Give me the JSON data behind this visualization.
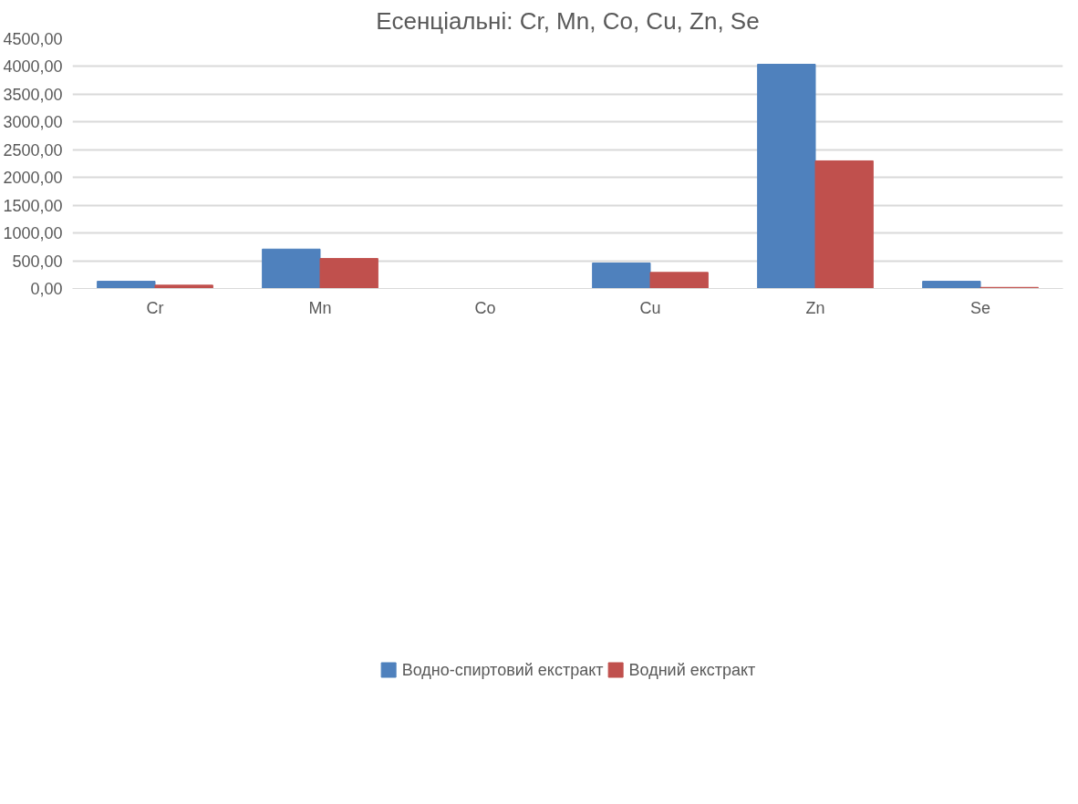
{
  "chart_data": {
    "type": "bar",
    "title": "Есенціальні: Cr, Mn, Co, Cu, Zn, Se",
    "categories": [
      "Cr",
      "Mn",
      "Co",
      "Cu",
      "Zn",
      "Se"
    ],
    "series": [
      {
        "name": "Водно-спиртовий екстракт",
        "color": "#4f81bd",
        "values": [
          130,
          710,
          0,
          460,
          4040,
          130
        ]
      },
      {
        "name": "Водний екстракт",
        "color": "#c0504d",
        "values": [
          60,
          540,
          0,
          290,
          2300,
          20
        ]
      }
    ],
    "ylim": [
      0,
      4500
    ],
    "yticks": [
      {
        "value": 0,
        "label": "0,00"
      },
      {
        "value": 500,
        "label": "500,00"
      },
      {
        "value": 1000,
        "label": "1000,00"
      },
      {
        "value": 1500,
        "label": "1500,00"
      },
      {
        "value": 2000,
        "label": "2000,00"
      },
      {
        "value": 2500,
        "label": "2500,00"
      },
      {
        "value": 3000,
        "label": "3000,00"
      },
      {
        "value": 3500,
        "label": "3500,00"
      },
      {
        "value": 4000,
        "label": "4000,00"
      },
      {
        "value": 4500,
        "label": "4500,00"
      }
    ],
    "grid": "y",
    "legend": "bottom"
  }
}
